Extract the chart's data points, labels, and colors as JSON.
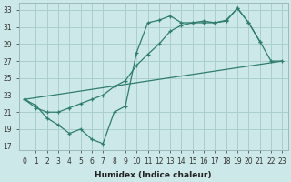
{
  "xlabel": "Humidex (Indice chaleur)",
  "bg_color": "#cde8e8",
  "line_color": "#2e7d6e",
  "grid_color": "#aacfcf",
  "xlim": [
    -0.5,
    23.5
  ],
  "ylim": [
    16.5,
    33.8
  ],
  "xticks": [
    0,
    1,
    2,
    3,
    4,
    5,
    6,
    7,
    8,
    9,
    10,
    11,
    12,
    13,
    14,
    15,
    16,
    17,
    18,
    19,
    20,
    21,
    22,
    23
  ],
  "yticks": [
    17,
    19,
    21,
    23,
    25,
    27,
    29,
    31,
    33
  ],
  "curve1_x": [
    0,
    1,
    2,
    3,
    4,
    5,
    6,
    7,
    8,
    9,
    10,
    11,
    12,
    13,
    14,
    15,
    16,
    17,
    18,
    19,
    20,
    21
  ],
  "curve1_y": [
    22.5,
    21.8,
    20.3,
    19.5,
    18.5,
    19.0,
    17.8,
    17.3,
    21.0,
    21.7,
    28.0,
    31.5,
    31.8,
    32.3,
    31.5,
    31.5,
    31.7,
    31.5,
    31.8,
    33.2,
    31.5,
    29.3
  ],
  "curve2_x": [
    0,
    1,
    2,
    3,
    4,
    5,
    6,
    7,
    8,
    9,
    10,
    11,
    12,
    13,
    14,
    15,
    16,
    17,
    18,
    19,
    20,
    21,
    22,
    23
  ],
  "curve2_y": [
    22.5,
    21.5,
    21.0,
    21.0,
    21.5,
    22.0,
    22.5,
    23.0,
    24.0,
    24.7,
    26.5,
    27.8,
    29.0,
    30.5,
    31.2,
    31.5,
    31.5,
    31.5,
    31.7,
    33.2,
    31.5,
    29.3,
    27.0,
    27.0
  ],
  "line3_x": [
    0,
    23
  ],
  "line3_y": [
    22.5,
    27.0
  ]
}
